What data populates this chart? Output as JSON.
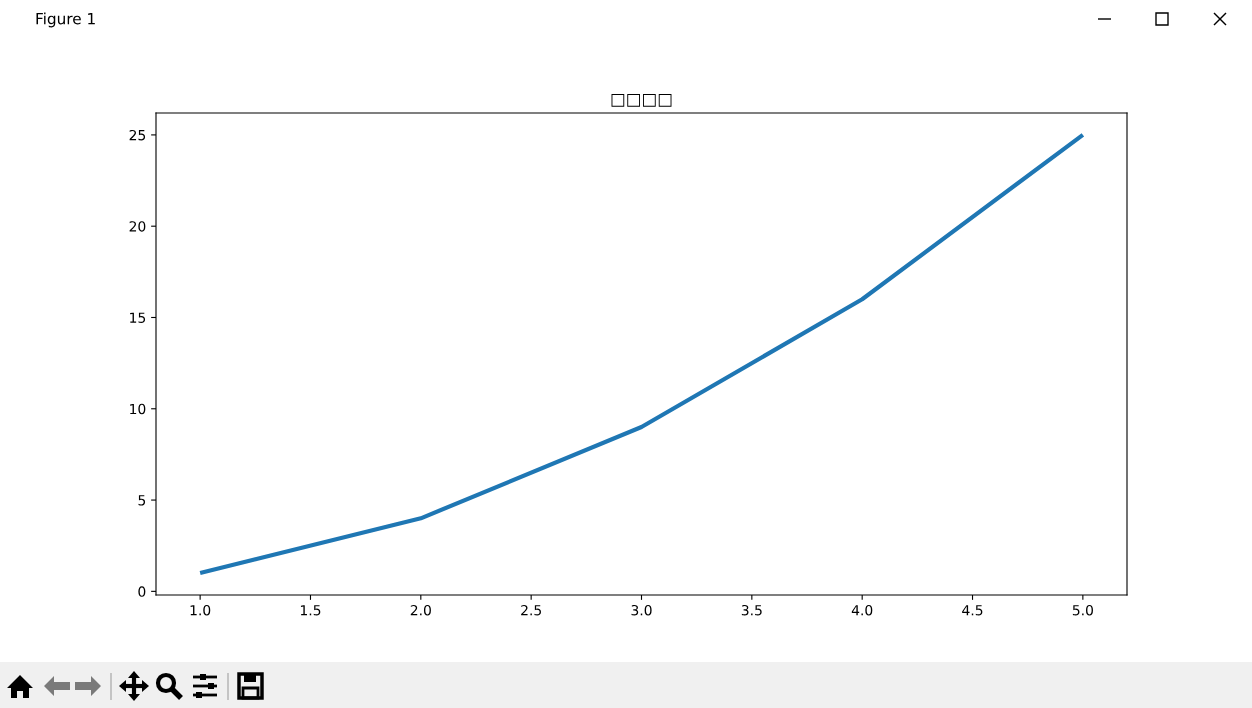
{
  "chart_data": {
    "type": "line",
    "title": "□□□□",
    "x": [
      1,
      2,
      3,
      4,
      5
    ],
    "series": [
      {
        "color": "#1f77b4",
        "values": [
          1,
          4,
          9,
          16,
          25
        ]
      }
    ],
    "xlim": [
      0.8,
      5.2
    ],
    "ylim": [
      -0.2,
      26.2
    ],
    "xticks": [
      {
        "value": 1,
        "label": "1.0"
      },
      {
        "value": 1.5,
        "label": "1.5"
      },
      {
        "value": 2,
        "label": "2.0"
      },
      {
        "value": 2.5,
        "label": "2.5"
      },
      {
        "value": 3,
        "label": "3.0"
      },
      {
        "value": 3.5,
        "label": "3.5"
      },
      {
        "value": 4,
        "label": "4.0"
      },
      {
        "value": 4.5,
        "label": "4.5"
      },
      {
        "value": 5,
        "label": "5.0"
      }
    ],
    "yticks": [
      0,
      5,
      10,
      15,
      20,
      25
    ],
    "line_style": "solid",
    "annotations": [
      "Figure 1"
    ]
  }
}
